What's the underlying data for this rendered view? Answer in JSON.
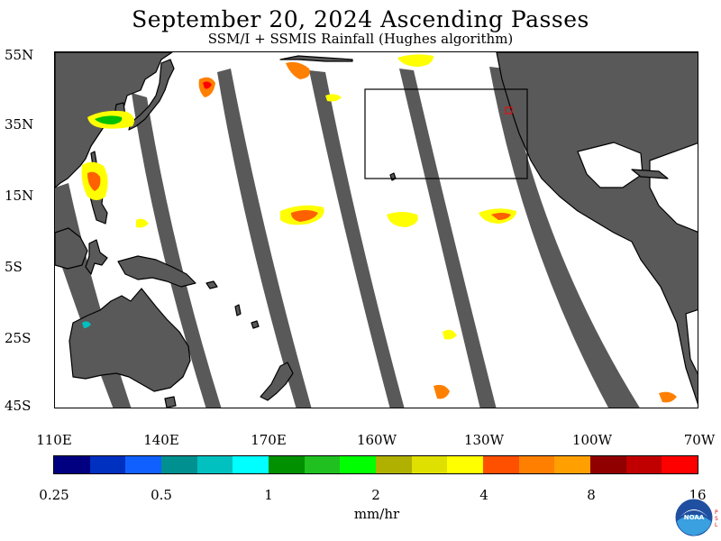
{
  "title": "September 20, 2024  Ascending Passes",
  "subtitle": "SSM/I + SSMIS Rainfall (Hughes algorithm)",
  "axes": {
    "lat_labels": [
      "55N",
      "35N",
      "15N",
      "5S",
      "25S",
      "45S"
    ],
    "lat_values": [
      55,
      35,
      15,
      -5,
      -25,
      -45
    ],
    "lon_labels": [
      "110E",
      "140E",
      "170E",
      "160W",
      "130W",
      "100W",
      "70W"
    ],
    "lon_values": [
      110,
      140,
      170,
      200,
      230,
      260,
      290
    ],
    "lat_range": [
      -45,
      55
    ],
    "lon_range": [
      110,
      290
    ]
  },
  "colorbar": {
    "colors": [
      "#000080",
      "#0030c0",
      "#1060ff",
      "#009090",
      "#00c0c0",
      "#00ffff",
      "#009000",
      "#20c020",
      "#00ff00",
      "#b0b000",
      "#e0e000",
      "#ffff00",
      "#ff5000",
      "#ff8000",
      "#ffa000",
      "#900000",
      "#c00000",
      "#ff0000"
    ],
    "tick_labels": [
      "0.25",
      "0.5",
      "1",
      "2",
      "4",
      "8",
      "16"
    ],
    "unit": "mm/hr"
  },
  "colors": {
    "land": "#595959",
    "no_data_swath": "#595959",
    "coastline": "#000000"
  },
  "logo": {
    "name": "NOAA",
    "side_text": "PSL"
  }
}
